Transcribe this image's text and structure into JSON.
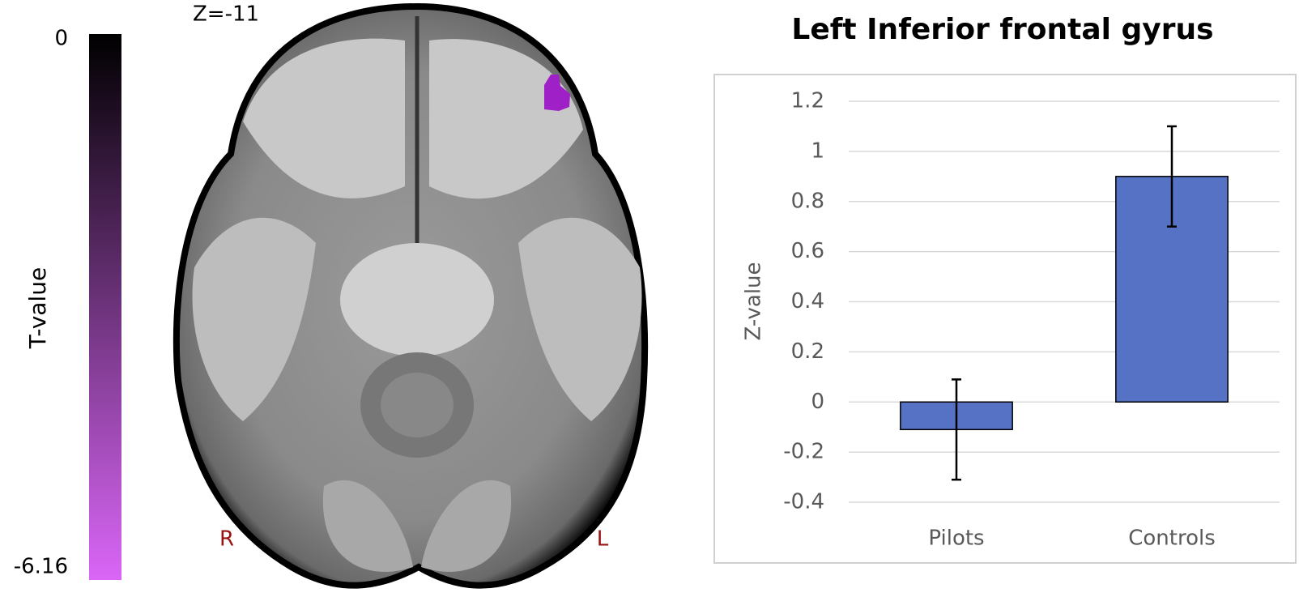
{
  "colorbar": {
    "title": "T-value",
    "ticks": [
      0,
      -6.16
    ],
    "colors": [
      "#000000",
      "#da66f7"
    ]
  },
  "brain": {
    "slice_label": "Z=-11",
    "right_label": "R",
    "left_label": "L",
    "cluster_color": "#a020c8"
  },
  "chart_data": {
    "type": "bar",
    "title": "Left Inferior frontal gyrus",
    "y_label": "Z-value",
    "categories": [
      "Pilots",
      "Controls"
    ],
    "values": [
      -0.11,
      0.9
    ],
    "errors": [
      0.2,
      0.2
    ],
    "color": "#5572c4",
    "ylim": [
      -0.4,
      1.2
    ],
    "yticks": [
      -0.4,
      -0.2,
      0,
      0.2,
      0.4,
      0.6,
      0.8,
      1,
      1.2
    ],
    "grid": true
  }
}
